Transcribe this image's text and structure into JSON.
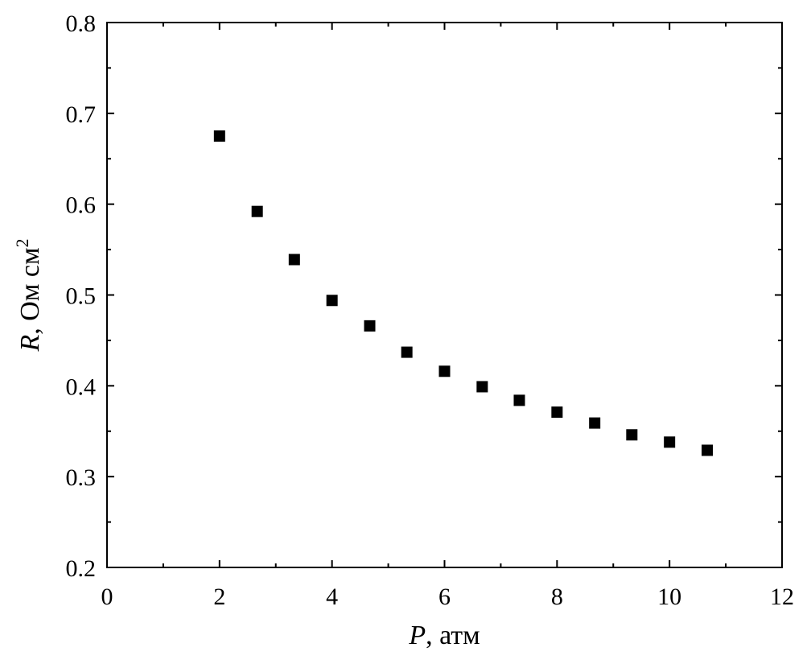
{
  "chart_data": {
    "type": "scatter",
    "xlabel": {
      "symbol": "P",
      "unit": ", атм"
    },
    "ylabel": {
      "symbol": "R",
      "unit": ", Ом см",
      "superscript": "2"
    },
    "xlim": [
      0,
      12
    ],
    "ylim": [
      0.2,
      0.8
    ],
    "x_ticks": [
      0,
      2,
      4,
      6,
      8,
      10,
      12
    ],
    "x_tick_labels": [
      "0",
      "2",
      "4",
      "6",
      "8",
      "10",
      "12"
    ],
    "y_ticks": [
      0.2,
      0.3,
      0.4,
      0.5,
      0.6,
      0.7,
      0.8
    ],
    "y_tick_labels": [
      "0.2",
      "0.3",
      "0.4",
      "0.5",
      "0.6",
      "0.7",
      "0.8"
    ],
    "grid": false,
    "marker": "filled-square",
    "marker_color": "#000000",
    "series": [
      {
        "x": [
          2.0,
          2.67,
          3.33,
          4.0,
          4.67,
          5.33,
          6.0,
          6.67,
          7.33,
          8.0,
          8.67,
          9.33,
          10.0,
          10.67
        ],
        "y": [
          0.675,
          0.592,
          0.539,
          0.494,
          0.466,
          0.437,
          0.416,
          0.399,
          0.384,
          0.371,
          0.359,
          0.346,
          0.338,
          0.329
        ]
      }
    ]
  }
}
